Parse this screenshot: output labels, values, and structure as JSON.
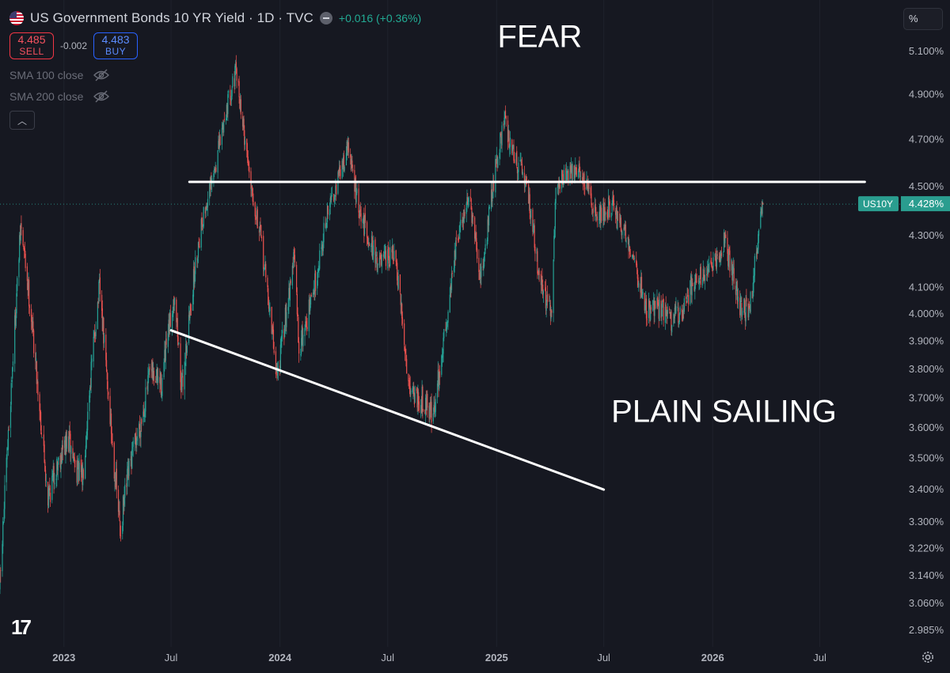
{
  "header": {
    "symbol_title": "US Government Bonds 10 YR Yield · 1D · TVC",
    "change": "+0.016 (+0.36%)",
    "sell_price": "4.485",
    "sell_label": "SELL",
    "spread": "-0.002",
    "buy_price": "4.483",
    "buy_label": "BUY",
    "flag_icon": "us-flag-icon",
    "status_icon": "minus-circle-icon"
  },
  "indicators": [
    {
      "label": "SMA 100 close",
      "icon": "eye-off-icon"
    },
    {
      "label": "SMA 200 close",
      "icon": "eye-off-icon"
    }
  ],
  "controls": {
    "percent_button": "%",
    "collapse_icon": "chevron-up-icon",
    "logo_text": "17",
    "settings_icon": "gear-icon"
  },
  "colors": {
    "background": "#161821",
    "up": "#26a69a",
    "down": "#ef5350",
    "last_price_tag": "#2a9d8f",
    "drawing": "#ffffff"
  },
  "chart_data": {
    "type": "candlestick",
    "title": "US Government Bonds 10 YR Yield",
    "interval": "1D",
    "source": "TVC",
    "y_scale": "log",
    "y_unit": "%",
    "y_ticks": [
      "5.100%",
      "4.900%",
      "4.700%",
      "4.500%",
      "4.300%",
      "4.100%",
      "4.000%",
      "3.900%",
      "3.800%",
      "3.700%",
      "3.600%",
      "3.500%",
      "3.400%",
      "3.300%",
      "3.220%",
      "3.140%",
      "3.060%",
      "2.985%"
    ],
    "x_ticks": [
      "2023",
      "Jul",
      "2024",
      "Jul",
      "2025",
      "Jul",
      "2026",
      "Jul"
    ],
    "x_range": [
      "2022-09-15",
      "2026-11-15"
    ],
    "last_value_label": {
      "symbol": "US10Y",
      "value": "4.428%",
      "y": 4.428
    },
    "series": [
      {
        "name": "US10Y",
        "points": [
          {
            "x": "2022-09-15",
            "y": 3.1
          },
          {
            "x": "2022-10-20",
            "y": 4.33
          },
          {
            "x": "2022-12-05",
            "y": 3.4
          },
          {
            "x": "2023-01-10",
            "y": 3.55
          },
          {
            "x": "2023-02-01",
            "y": 3.45
          },
          {
            "x": "2023-03-02",
            "y": 4.08
          },
          {
            "x": "2023-04-06",
            "y": 3.27
          },
          {
            "x": "2023-05-26",
            "y": 3.8
          },
          {
            "x": "2023-06-15",
            "y": 3.72
          },
          {
            "x": "2023-07-07",
            "y": 4.1
          },
          {
            "x": "2023-07-19",
            "y": 3.75
          },
          {
            "x": "2023-08-22",
            "y": 4.35
          },
          {
            "x": "2023-10-19",
            "y": 5.0
          },
          {
            "x": "2023-11-15",
            "y": 4.5
          },
          {
            "x": "2023-12-27",
            "y": 3.8
          },
          {
            "x": "2024-01-25",
            "y": 4.2
          },
          {
            "x": "2024-02-02",
            "y": 3.85
          },
          {
            "x": "2024-03-15",
            "y": 4.3
          },
          {
            "x": "2024-04-25",
            "y": 4.7
          },
          {
            "x": "2024-05-15",
            "y": 4.35
          },
          {
            "x": "2024-06-15",
            "y": 4.22
          },
          {
            "x": "2024-07-12",
            "y": 4.2
          },
          {
            "x": "2024-08-05",
            "y": 3.78
          },
          {
            "x": "2024-09-16",
            "y": 3.62
          },
          {
            "x": "2024-10-20",
            "y": 4.2
          },
          {
            "x": "2024-11-15",
            "y": 4.45
          },
          {
            "x": "2024-12-05",
            "y": 4.15
          },
          {
            "x": "2025-01-14",
            "y": 4.79
          },
          {
            "x": "2025-02-20",
            "y": 4.5
          },
          {
            "x": "2025-03-10",
            "y": 4.2
          },
          {
            "x": "2025-04-04",
            "y": 4.0
          },
          {
            "x": "2025-04-11",
            "y": 4.48
          },
          {
            "x": "2025-05-21",
            "y": 4.6
          },
          {
            "x": "2025-06-20",
            "y": 4.35
          },
          {
            "x": "2025-07-15",
            "y": 4.45
          },
          {
            "x": "2025-09-10",
            "y": 4.05
          },
          {
            "x": "2025-10-22",
            "y": 3.97
          },
          {
            "x": "2025-11-20",
            "y": 4.08
          },
          {
            "x": "2025-12-20",
            "y": 4.15
          },
          {
            "x": "2026-01-20",
            "y": 4.27
          },
          {
            "x": "2026-02-15",
            "y": 4.02
          },
          {
            "x": "2026-03-05",
            "y": 4.05
          },
          {
            "x": "2026-03-20",
            "y": 4.3
          },
          {
            "x": "2026-03-27",
            "y": 4.428
          }
        ]
      }
    ],
    "drawings": [
      {
        "type": "horizontal-line",
        "start": {
          "x": "2023-08-01",
          "y": 4.52
        },
        "end": {
          "x": "2026-09-15",
          "y": 4.52
        }
      },
      {
        "type": "trend-line",
        "start": {
          "x": "2023-07-01",
          "y": 3.94
        },
        "end": {
          "x": "2025-07-01",
          "y": 3.4
        }
      }
    ],
    "annotations": [
      {
        "text": "FEAR",
        "x": "2025-03-15",
        "y": 5.12
      },
      {
        "text": "PLAIN SAILING",
        "x": "2026-01-20",
        "y": 3.62
      }
    ]
  }
}
